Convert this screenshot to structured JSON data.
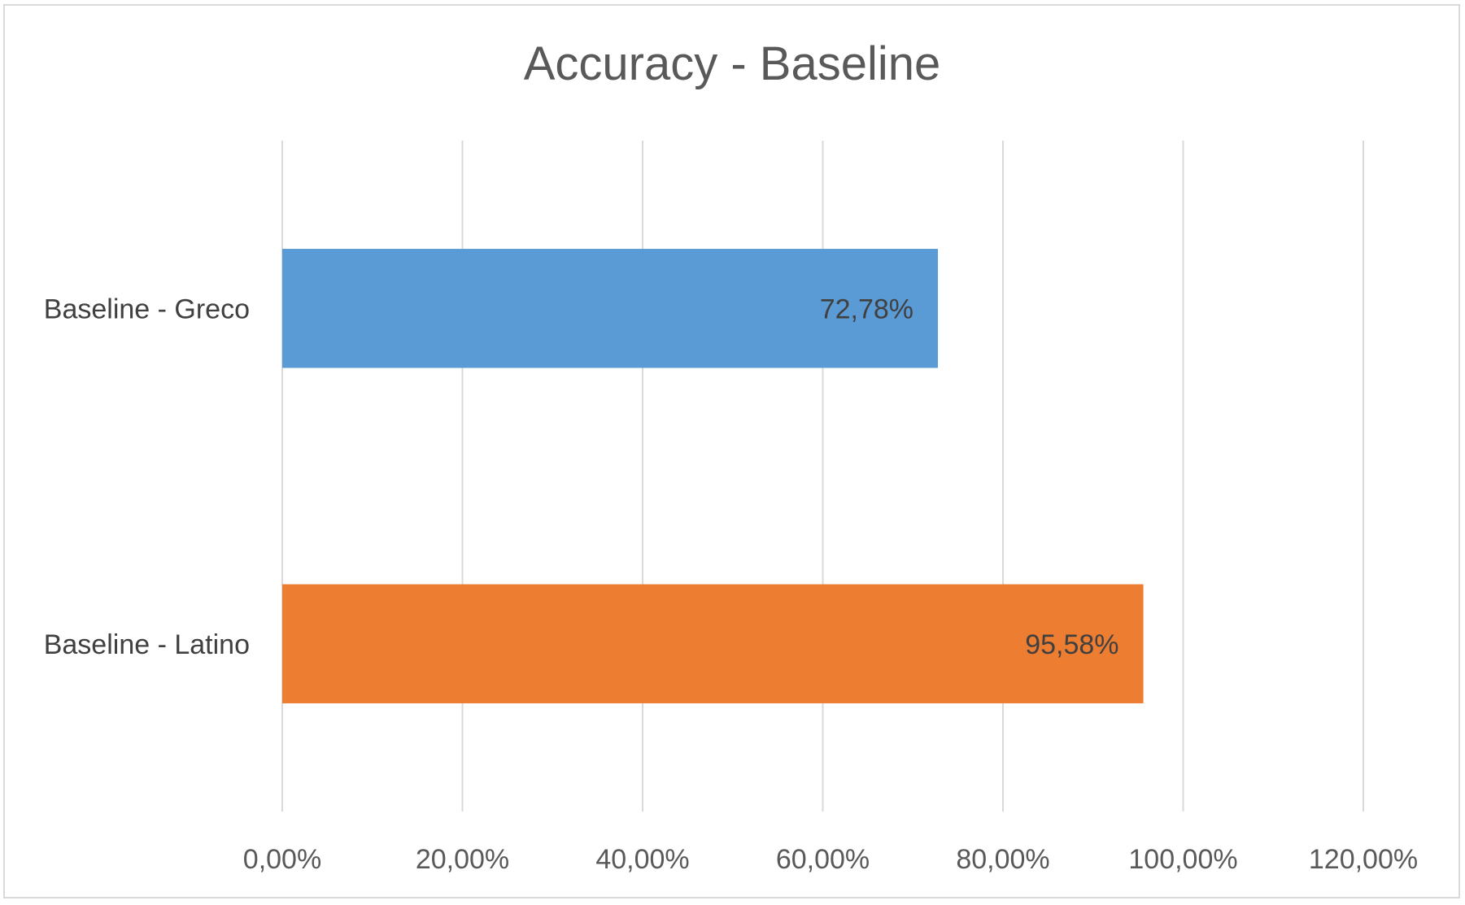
{
  "chart_data": {
    "type": "bar",
    "orientation": "horizontal",
    "title": "Accuracy - Baseline",
    "categories": [
      "Baseline - Greco",
      "Baseline - Latino"
    ],
    "values": [
      72.78,
      95.58
    ],
    "data_labels": [
      "72,78%",
      "95,58%"
    ],
    "bar_colors": [
      "#5b9bd5",
      "#ed7d31"
    ],
    "xlim": [
      0,
      120
    ],
    "x_ticks": [
      0,
      20,
      40,
      60,
      80,
      100,
      120
    ],
    "x_tick_labels": [
      "0,00%",
      "20,00%",
      "40,00%",
      "60,00%",
      "80,00%",
      "100,00%",
      "120,00%"
    ],
    "grid": true,
    "legend": "none",
    "xlabel": "",
    "ylabel": ""
  }
}
